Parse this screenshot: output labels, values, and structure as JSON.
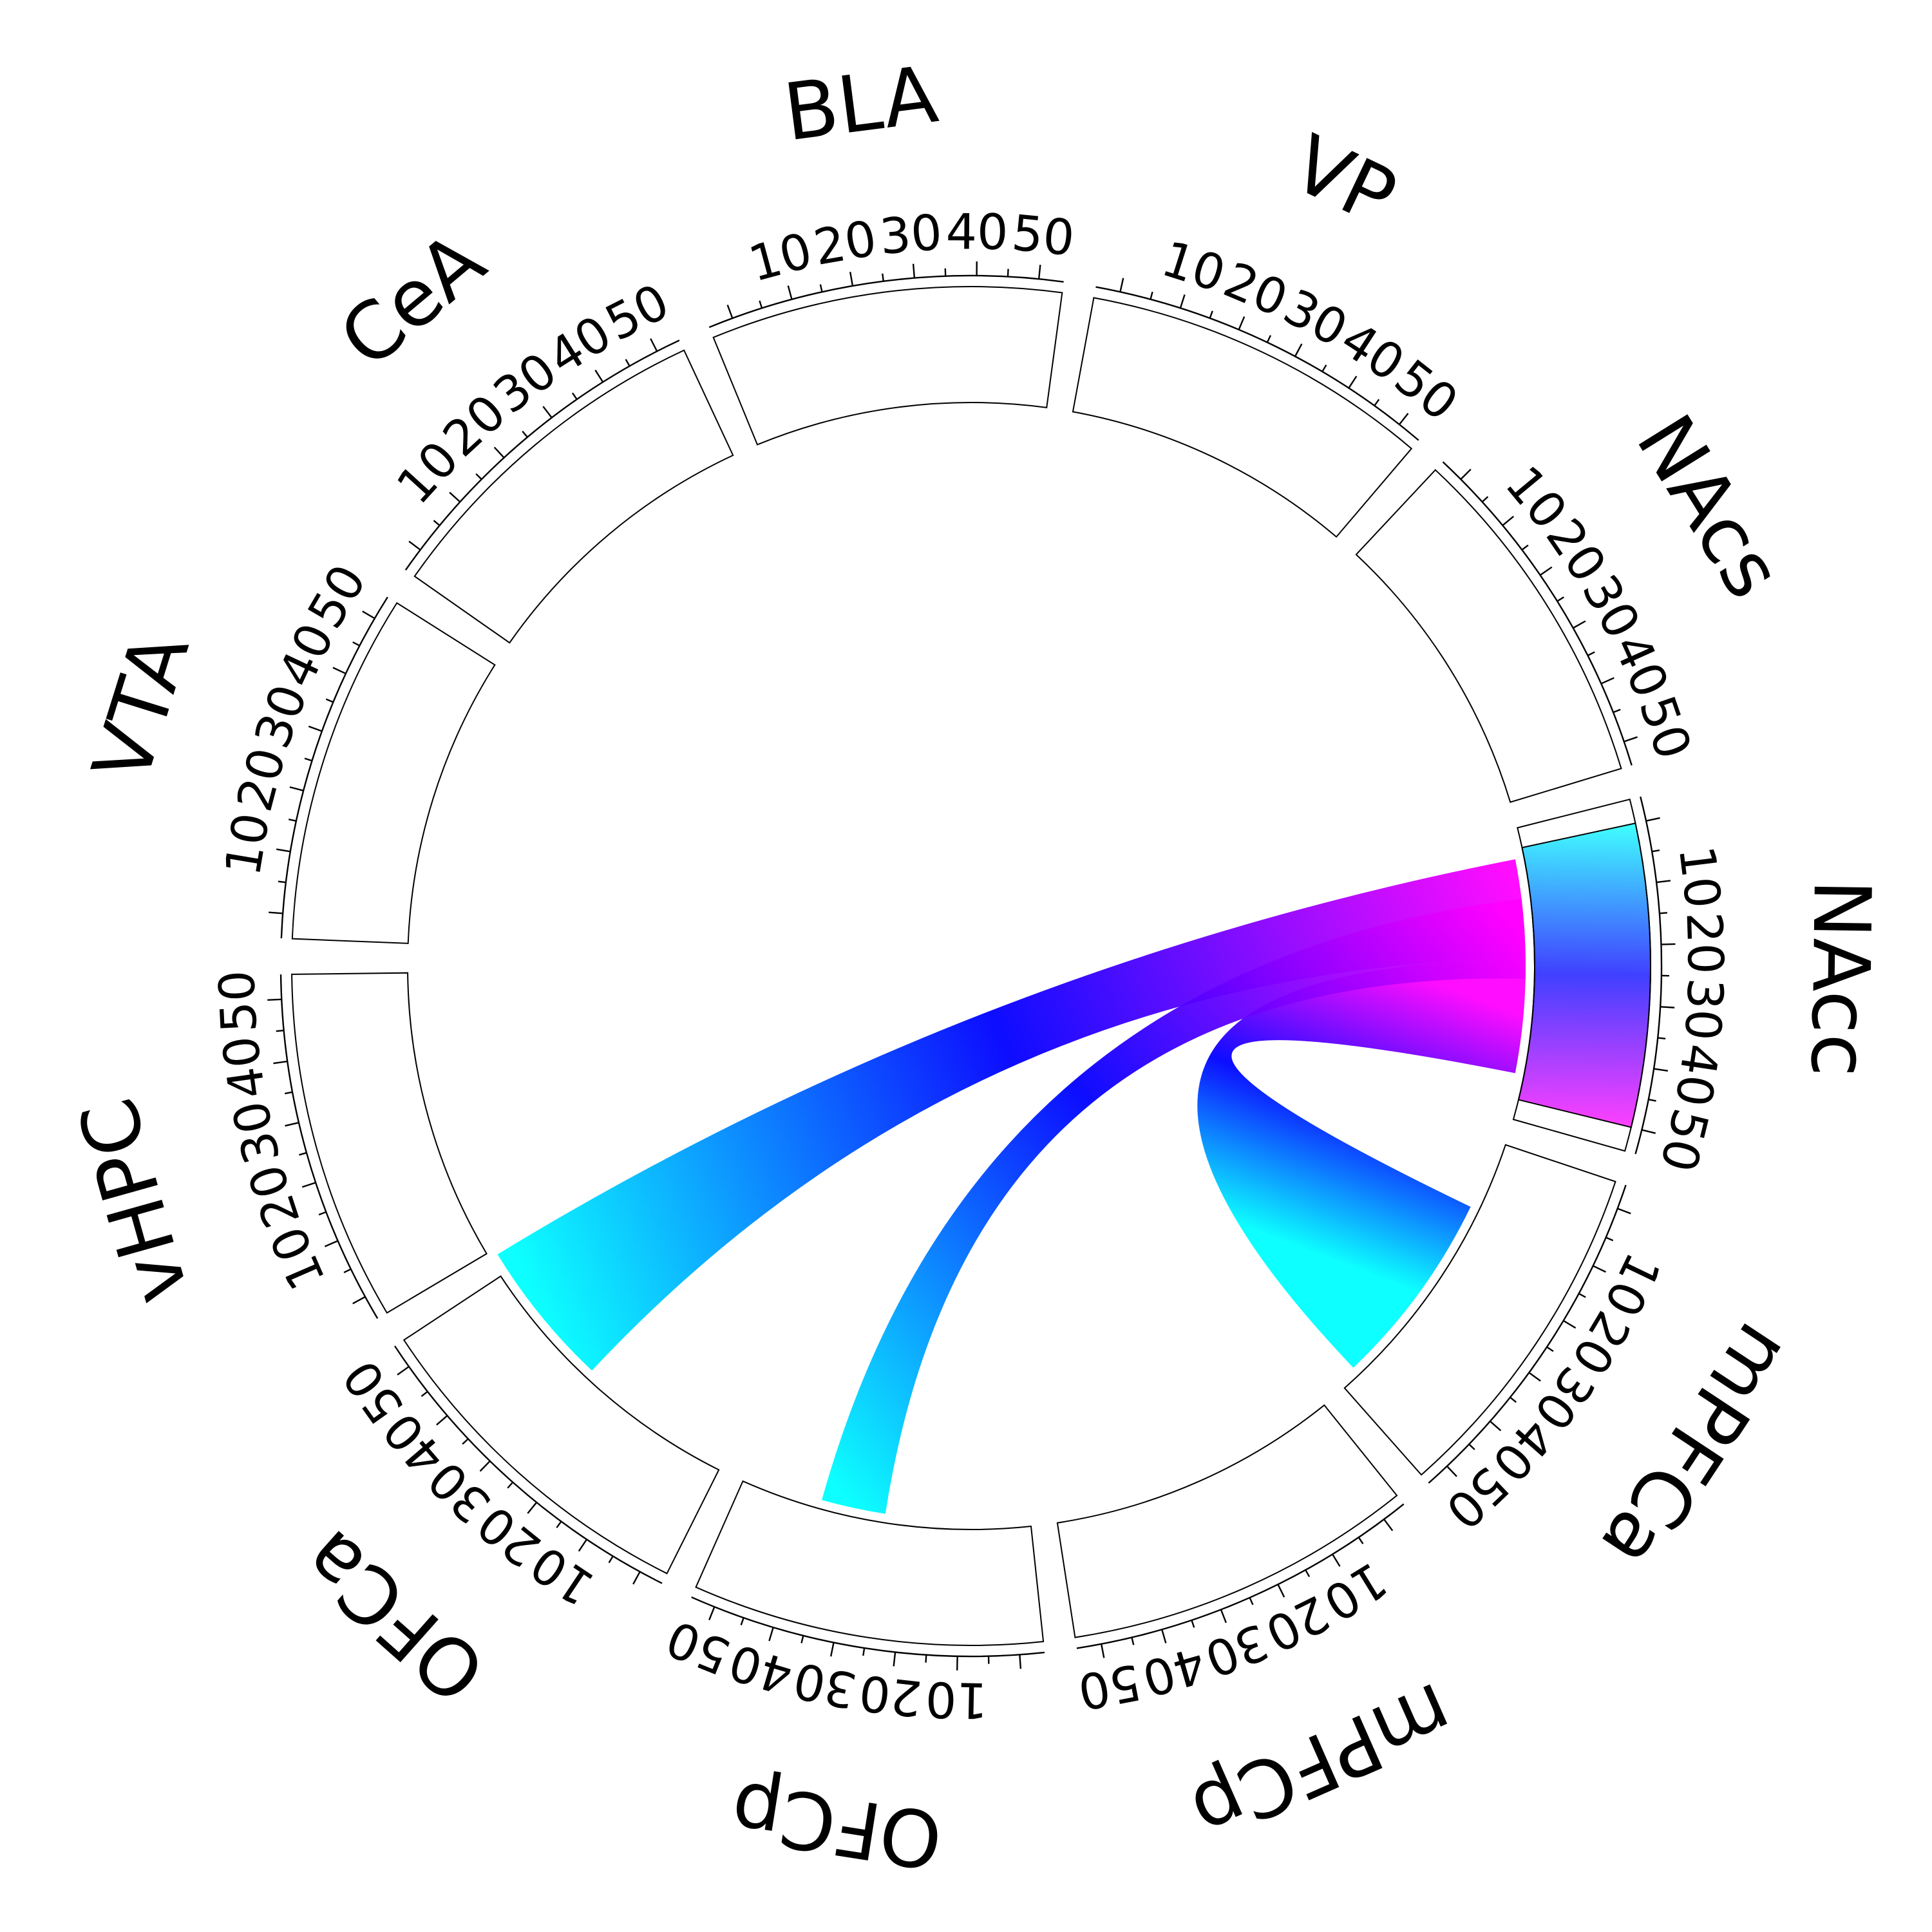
{
  "chart_data": {
    "type": "chord",
    "axis_max": 50,
    "tick_labels": [
      "10",
      "20",
      "30",
      "40",
      "50"
    ],
    "sectors": [
      {
        "label": "VTA"
      },
      {
        "label": "CeA"
      },
      {
        "label": "BLA"
      },
      {
        "label": "VP"
      },
      {
        "label": "NAcs"
      },
      {
        "label": "NAcc"
      },
      {
        "label": "mPFCa"
      },
      {
        "label": "mPFCp"
      },
      {
        "label": "OFCp"
      },
      {
        "label": "OFCa"
      },
      {
        "label": "vHPC"
      }
    ],
    "links": [
      {
        "target": "NAcc",
        "target_from": 2,
        "target_to": 22,
        "source": "OFCa",
        "source_from": 28,
        "source_to": 58
      },
      {
        "target": "NAcc",
        "target_from": 22,
        "target_to": 45,
        "source": "mPFCa",
        "source_from": 10,
        "source_to": 50
      },
      {
        "target": "NAcc",
        "target_from": 10,
        "target_to": 26,
        "source": "OFCp",
        "source_from": 25,
        "source_to": 38
      }
    ],
    "gradient_colors": [
      "#ff00ff",
      "#0000ff",
      "#00ffff"
    ]
  }
}
